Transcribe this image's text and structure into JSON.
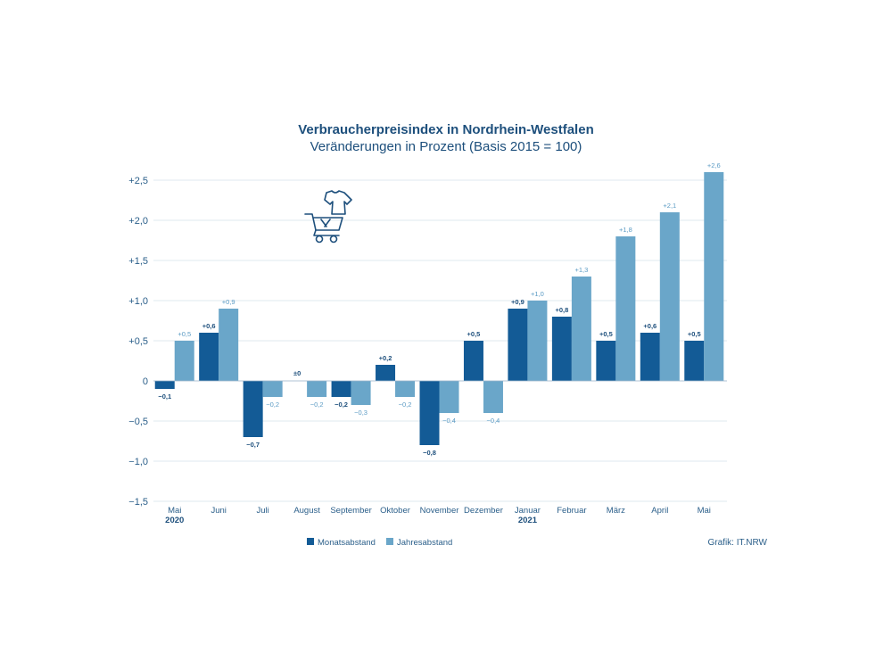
{
  "chart_data": {
    "type": "bar",
    "title": "Verbraucherpreisindex in Nordrhein-Westfalen",
    "subtitle": "Veränderungen in Prozent (Basis 2015 = 100)",
    "categories": [
      "Mai",
      "Juni",
      "Juli",
      "August",
      "September",
      "Oktober",
      "November",
      "Dezember",
      "Januar",
      "Februar",
      "März",
      "April",
      "Mai"
    ],
    "year_labels": [
      "2020",
      "",
      "",
      "",
      "",
      "",
      "",
      "",
      "2021",
      "",
      "",
      "",
      ""
    ],
    "ylim": [
      -1.5,
      2.5
    ],
    "yticks": [
      2.5,
      2.0,
      1.5,
      1.0,
      0.5,
      0,
      -0.5,
      -1.0,
      -1.5
    ],
    "ytick_labels": [
      "+2,5",
      "+2,0",
      "+1,5",
      "+1,0",
      "+0,5",
      "0",
      "−0,5",
      "−1,0",
      "−1,5"
    ],
    "grid": true,
    "legend_position": "bottom-left",
    "colors": {
      "monat": "#135b96",
      "jahr": "#6aa6c9"
    },
    "series": [
      {
        "name": "Monatsabstand",
        "values": [
          -0.1,
          0.6,
          -0.7,
          0,
          -0.2,
          0.2,
          -0.8,
          0.5,
          0.9,
          0.8,
          0.5,
          0.6,
          0.5
        ],
        "labels": [
          "−0,1",
          "+0,6",
          "−0,7",
          "±0",
          "−0,2",
          "+0,2",
          "−0,8",
          "+0,5",
          "+0,9",
          "+0,8",
          "+0,5",
          "+0,6",
          "+0,5"
        ]
      },
      {
        "name": "Jahresabstand",
        "values": [
          0.5,
          0.9,
          -0.2,
          -0.2,
          -0.3,
          -0.2,
          -0.4,
          -0.4,
          1.0,
          1.3,
          1.8,
          2.1,
          2.6
        ],
        "labels": [
          "+0,5",
          "+0,9",
          "−0,2",
          "−0,2",
          "−0,3",
          "−0,2",
          "−0,4",
          "−0,4",
          "+1,0",
          "+1,3",
          "+1,8",
          "+2,1",
          "+2,6"
        ]
      }
    ],
    "source": "Grafik: IT.NRW",
    "icon": "shopping-cart-clothes-icon"
  }
}
